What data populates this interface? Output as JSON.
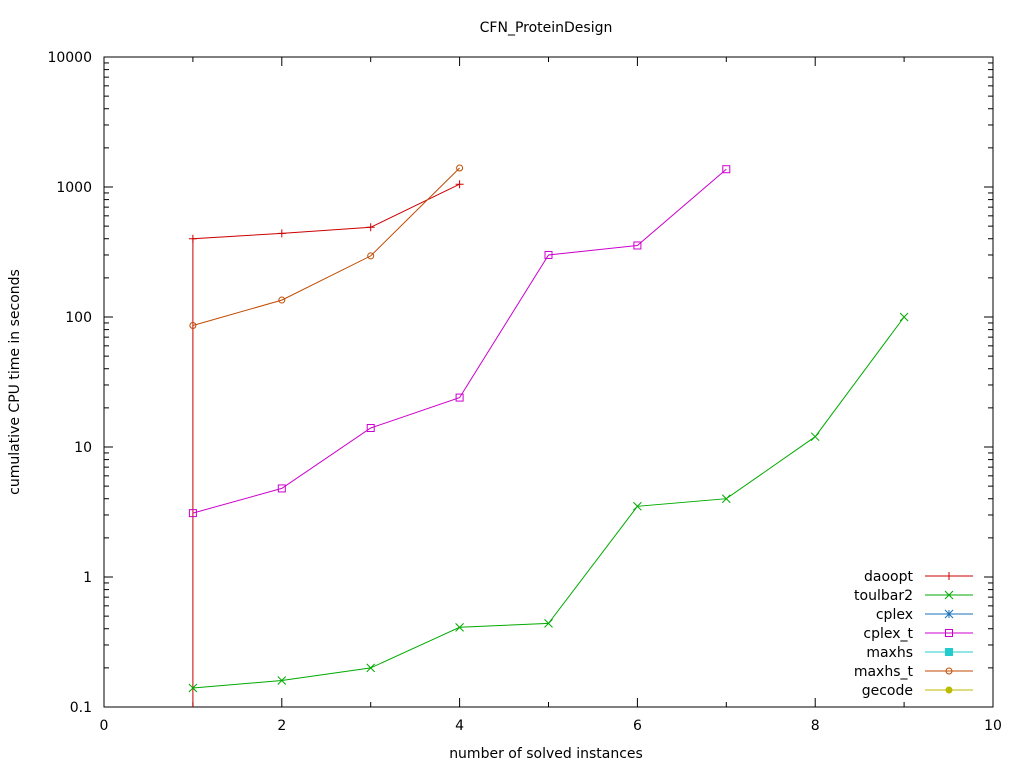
{
  "chart_data": {
    "type": "line",
    "title": "CFN_ProteinDesign",
    "xlabel": "number of solved instances",
    "ylabel": "cumulative CPU time in seconds",
    "x_scale": "linear",
    "y_scale": "log",
    "xlim": [
      0,
      10
    ],
    "ylim": [
      0.1,
      10000
    ],
    "x_ticks": [
      0,
      2,
      4,
      6,
      8,
      10
    ],
    "x_tick_labels": [
      "0",
      "2",
      "4",
      "6",
      "8",
      "10"
    ],
    "y_ticks": [
      0.1,
      1,
      10,
      100,
      1000,
      10000
    ],
    "y_tick_labels": [
      "0.1",
      "1",
      "10",
      "100",
      "1000",
      "10000"
    ],
    "grid": false,
    "legend_position": "bottom-right",
    "series": [
      {
        "name": "daoopt",
        "color": "#cc0000",
        "marker": "plus",
        "x": [
          1,
          1,
          2,
          3,
          4
        ],
        "y": [
          0.1,
          400,
          440,
          490,
          1050
        ]
      },
      {
        "name": "toulbar2",
        "color": "#00aa00",
        "marker": "cross",
        "x": [
          1,
          2,
          3,
          4,
          5,
          6,
          7,
          8,
          9
        ],
        "y": [
          0.14,
          0.16,
          0.2,
          0.41,
          0.44,
          3.5,
          4.0,
          12,
          100
        ]
      },
      {
        "name": "cplex",
        "color": "#1a70bb",
        "marker": "star",
        "x": [],
        "y": []
      },
      {
        "name": "cplex_t",
        "color": "#cc00cc",
        "marker": "square",
        "x": [
          1,
          2,
          3,
          4,
          5,
          6,
          7
        ],
        "y": [
          3.1,
          4.8,
          14,
          24,
          300,
          355,
          1370
        ]
      },
      {
        "name": "maxhs",
        "color": "#22cccc",
        "marker": "filled-square",
        "x": [],
        "y": []
      },
      {
        "name": "maxhs_t",
        "color": "#c04a00",
        "marker": "circle",
        "x": [
          1,
          2,
          3,
          4
        ],
        "y": [
          86,
          135,
          295,
          1400
        ]
      },
      {
        "name": "gecode",
        "color": "#bbbb00",
        "marker": "filled-circle",
        "x": [],
        "y": []
      }
    ]
  }
}
